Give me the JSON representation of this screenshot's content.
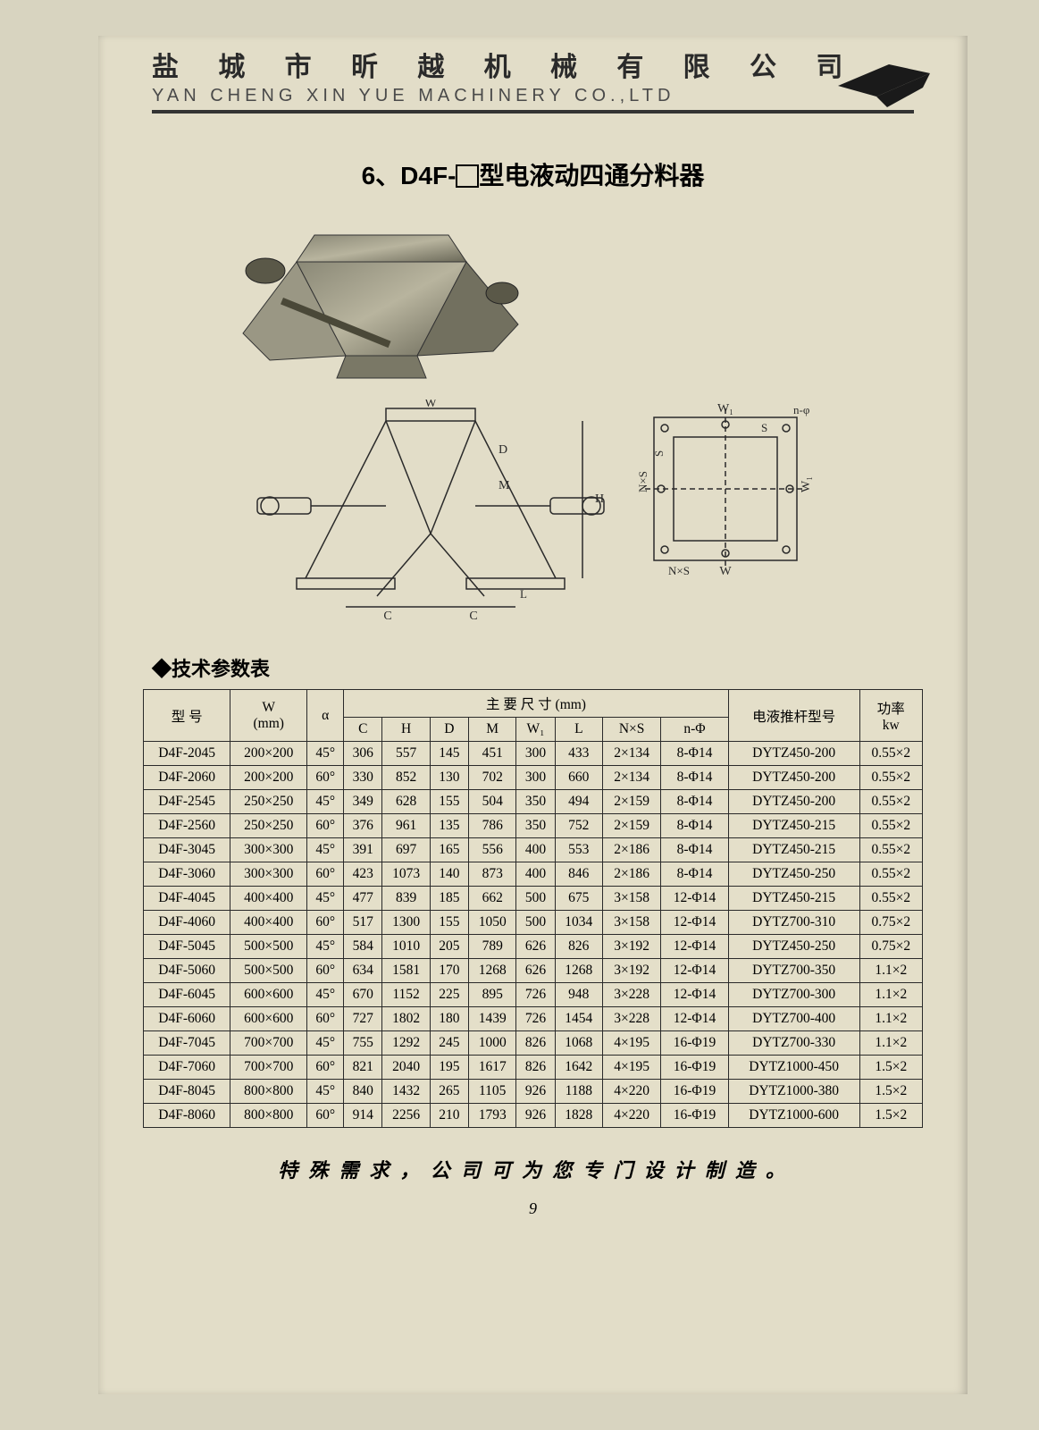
{
  "header": {
    "company_cn": "盐 城 市 昕 越 机 械 有 限 公 司",
    "company_en": "YAN CHENG XIN YUE MACHINERY CO.,LTD",
    "logo_fill": "#1a1a1a"
  },
  "product": {
    "title_prefix": "6、D4F-",
    "title_suffix": "型电液动四通分料器",
    "title_fontsize": 28
  },
  "diagram": {
    "labels": [
      "W",
      "D",
      "M",
      "H",
      "L",
      "W₁",
      "C",
      "C",
      "S",
      "N×S",
      "W",
      "W₁",
      "n-φ"
    ],
    "line_color": "#2a2a2a"
  },
  "table": {
    "section_label": "◆技术参数表",
    "header_row1": [
      "型    号",
      "W\n(mm)",
      "α",
      "主  要  尺  寸   (mm)",
      "电液推杆型号",
      "功率\nkw"
    ],
    "header_row2": [
      "C",
      "H",
      "D",
      "M",
      "W₁",
      "L",
      "N×S",
      "n-Φ"
    ],
    "col_widths_pct": [
      11,
      10,
      5,
      6,
      6,
      6,
      6,
      6,
      6,
      8,
      8,
      13,
      9
    ],
    "rows": [
      [
        "D4F-2045",
        "200×200",
        "45°",
        "306",
        "557",
        "145",
        "451",
        "300",
        "433",
        "2×134",
        "8-Φ14",
        "DYTZ450-200",
        "0.55×2"
      ],
      [
        "D4F-2060",
        "200×200",
        "60°",
        "330",
        "852",
        "130",
        "702",
        "300",
        "660",
        "2×134",
        "8-Φ14",
        "DYTZ450-200",
        "0.55×2"
      ],
      [
        "D4F-2545",
        "250×250",
        "45°",
        "349",
        "628",
        "155",
        "504",
        "350",
        "494",
        "2×159",
        "8-Φ14",
        "DYTZ450-200",
        "0.55×2"
      ],
      [
        "D4F-2560",
        "250×250",
        "60°",
        "376",
        "961",
        "135",
        "786",
        "350",
        "752",
        "2×159",
        "8-Φ14",
        "DYTZ450-215",
        "0.55×2"
      ],
      [
        "D4F-3045",
        "300×300",
        "45°",
        "391",
        "697",
        "165",
        "556",
        "400",
        "553",
        "2×186",
        "8-Φ14",
        "DYTZ450-215",
        "0.55×2"
      ],
      [
        "D4F-3060",
        "300×300",
        "60°",
        "423",
        "1073",
        "140",
        "873",
        "400",
        "846",
        "2×186",
        "8-Φ14",
        "DYTZ450-250",
        "0.55×2"
      ],
      [
        "D4F-4045",
        "400×400",
        "45°",
        "477",
        "839",
        "185",
        "662",
        "500",
        "675",
        "3×158",
        "12-Φ14",
        "DYTZ450-215",
        "0.55×2"
      ],
      [
        "D4F-4060",
        "400×400",
        "60°",
        "517",
        "1300",
        "155",
        "1050",
        "500",
        "1034",
        "3×158",
        "12-Φ14",
        "DYTZ700-310",
        "0.75×2"
      ],
      [
        "D4F-5045",
        "500×500",
        "45°",
        "584",
        "1010",
        "205",
        "789",
        "626",
        "826",
        "3×192",
        "12-Φ14",
        "DYTZ450-250",
        "0.75×2"
      ],
      [
        "D4F-5060",
        "500×500",
        "60°",
        "634",
        "1581",
        "170",
        "1268",
        "626",
        "1268",
        "3×192",
        "12-Φ14",
        "DYTZ700-350",
        "1.1×2"
      ],
      [
        "D4F-6045",
        "600×600",
        "45°",
        "670",
        "1152",
        "225",
        "895",
        "726",
        "948",
        "3×228",
        "12-Φ14",
        "DYTZ700-300",
        "1.1×2"
      ],
      [
        "D4F-6060",
        "600×600",
        "60°",
        "727",
        "1802",
        "180",
        "1439",
        "726",
        "1454",
        "3×228",
        "12-Φ14",
        "DYTZ700-400",
        "1.1×2"
      ],
      [
        "D4F-7045",
        "700×700",
        "45°",
        "755",
        "1292",
        "245",
        "1000",
        "826",
        "1068",
        "4×195",
        "16-Φ19",
        "DYTZ700-330",
        "1.1×2"
      ],
      [
        "D4F-7060",
        "700×700",
        "60°",
        "821",
        "2040",
        "195",
        "1617",
        "826",
        "1642",
        "4×195",
        "16-Φ19",
        "DYTZ1000-450",
        "1.5×2"
      ],
      [
        "D4F-8045",
        "800×800",
        "45°",
        "840",
        "1432",
        "265",
        "1105",
        "926",
        "1188",
        "4×220",
        "16-Φ19",
        "DYTZ1000-380",
        "1.5×2"
      ],
      [
        "D4F-8060",
        "800×800",
        "60°",
        "914",
        "2256",
        "210",
        "1793",
        "926",
        "1828",
        "4×220",
        "16-Φ19",
        "DYTZ1000-600",
        "1.5×2"
      ]
    ],
    "border_color": "#2a2a2a",
    "bg_color": "#e4dfc9",
    "font_size": 15.5
  },
  "footer": {
    "note": "特 殊 需 求 ， 公 司 可 为 您 专 门 设 计 制 造 。",
    "page_number": "9"
  },
  "colors": {
    "page_bg": "#e2ddc8",
    "outer_bg": "#d8d4c0",
    "text": "#2a2a2a"
  }
}
